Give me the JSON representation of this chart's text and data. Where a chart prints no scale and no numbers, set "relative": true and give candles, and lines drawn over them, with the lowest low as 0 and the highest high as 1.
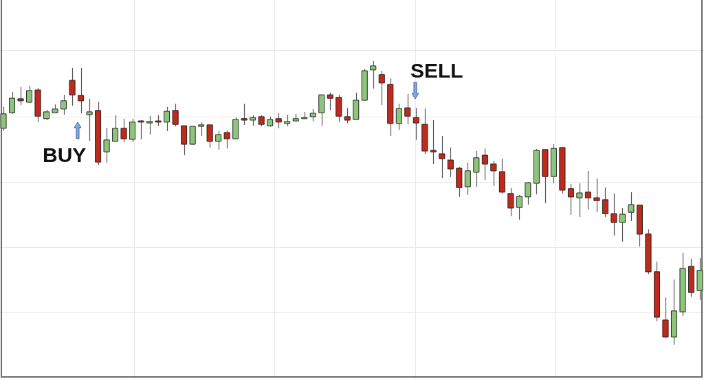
{
  "chart_data": {
    "type": "candlestick",
    "relative": true,
    "grid": true,
    "categories": [
      null,
      null,
      null,
      null,
      null,
      null,
      null,
      null,
      null,
      null,
      null,
      null,
      null,
      null,
      null,
      null,
      null,
      null,
      null,
      null,
      null,
      null,
      null,
      null,
      null,
      null,
      null,
      null,
      null,
      null,
      null,
      null,
      null,
      null,
      null,
      null,
      null,
      null,
      null,
      null,
      null,
      null,
      null,
      null,
      null,
      null,
      null,
      null,
      null,
      null,
      null,
      null,
      null,
      null,
      null,
      null,
      null,
      null,
      null,
      null,
      null,
      null,
      null,
      null,
      null,
      null,
      null,
      null,
      null,
      null,
      null,
      null,
      null,
      null,
      null,
      null,
      null,
      null,
      null,
      null,
      null,
      null
    ],
    "ohlc": [
      [
        0.763,
        0.84,
        0.755,
        0.814
      ],
      [
        0.818,
        0.891,
        0.814,
        0.869
      ],
      [
        0.867,
        0.908,
        0.845,
        0.86
      ],
      [
        0.855,
        0.913,
        0.852,
        0.896
      ],
      [
        0.898,
        0.906,
        0.785,
        0.806
      ],
      [
        0.797,
        0.828,
        0.792,
        0.821
      ],
      [
        0.818,
        0.847,
        0.818,
        0.831
      ],
      [
        0.831,
        0.881,
        0.811,
        0.86
      ],
      [
        0.932,
        0.976,
        0.843,
        0.881
      ],
      [
        0.879,
        0.976,
        0.816,
        0.86
      ],
      [
        0.811,
        0.867,
        0.719,
        0.821
      ],
      [
        0.826,
        0.857,
        0.634,
        0.644
      ],
      [
        0.68,
        0.765,
        0.642,
        0.722
      ],
      [
        0.717,
        0.809,
        0.717,
        0.763
      ],
      [
        0.763,
        0.797,
        0.714,
        0.726
      ],
      [
        0.724,
        0.797,
        0.714,
        0.785
      ],
      [
        0.789,
        0.792,
        0.724,
        0.785
      ],
      [
        0.782,
        0.806,
        0.741,
        0.787
      ],
      [
        0.789,
        0.809,
        0.772,
        0.785
      ],
      [
        0.785,
        0.838,
        0.753,
        0.823
      ],
      [
        0.826,
        0.85,
        0.77,
        0.777
      ],
      [
        0.772,
        0.772,
        0.668,
        0.707
      ],
      [
        0.707,
        0.77,
        0.705,
        0.77
      ],
      [
        0.77,
        0.785,
        0.736,
        0.775
      ],
      [
        0.775,
        0.775,
        0.695,
        0.717
      ],
      [
        0.717,
        0.753,
        0.688,
        0.741
      ],
      [
        0.748,
        0.755,
        0.692,
        0.726
      ],
      [
        0.726,
        0.801,
        0.726,
        0.794
      ],
      [
        0.797,
        0.85,
        0.775,
        0.792
      ],
      [
        0.792,
        0.809,
        0.772,
        0.801
      ],
      [
        0.804,
        0.809,
        0.77,
        0.777
      ],
      [
        0.772,
        0.804,
        0.768,
        0.794
      ],
      [
        0.797,
        0.816,
        0.763,
        0.785
      ],
      [
        0.78,
        0.811,
        0.77,
        0.787
      ],
      [
        0.789,
        0.814,
        0.787,
        0.797
      ],
      [
        0.797,
        0.821,
        0.797,
        0.801
      ],
      [
        0.804,
        0.831,
        0.789,
        0.816
      ],
      [
        0.818,
        0.881,
        0.772,
        0.881
      ],
      [
        0.881,
        0.889,
        0.828,
        0.869
      ],
      [
        0.872,
        0.881,
        0.785,
        0.806
      ],
      [
        0.804,
        0.835,
        0.782,
        0.792
      ],
      [
        0.794,
        0.889,
        0.794,
        0.862
      ],
      [
        0.862,
        0.973,
        0.862,
        0.966
      ],
      [
        0.969,
        1,
        0.903,
        0.983
      ],
      [
        0.952,
        0.966,
        0.845,
        0.923
      ],
      [
        0.918,
        0.939,
        0.736,
        0.78
      ],
      [
        0.78,
        0.85,
        0.758,
        0.833
      ],
      [
        0.835,
        0.884,
        0.777,
        0.806
      ],
      [
        0.801,
        0.835,
        0.722,
        0.782
      ],
      [
        0.777,
        0.833,
        0.673,
        0.683
      ],
      [
        0.685,
        0.792,
        0.637,
        0.68
      ],
      [
        0.673,
        0.736,
        0.588,
        0.656
      ],
      [
        0.651,
        0.695,
        0.591,
        0.62
      ],
      [
        0.622,
        0.627,
        0.521,
        0.554
      ],
      [
        0.557,
        0.642,
        0.528,
        0.613
      ],
      [
        0.608,
        0.683,
        0.557,
        0.659
      ],
      [
        0.668,
        0.692,
        0.581,
        0.637
      ],
      [
        0.637,
        0.649,
        0.559,
        0.613
      ],
      [
        0.61,
        0.656,
        0.533,
        0.538
      ],
      [
        0.533,
        0.552,
        0.453,
        0.482
      ],
      [
        0.484,
        0.528,
        0.441,
        0.523
      ],
      [
        0.521,
        0.574,
        0.494,
        0.571
      ],
      [
        0.569,
        0.69,
        0.53,
        0.685
      ],
      [
        0.688,
        0.688,
        0.499,
        0.593
      ],
      [
        0.593,
        0.707,
        0.569,
        0.692
      ],
      [
        0.695,
        0.695,
        0.533,
        0.545
      ],
      [
        0.55,
        0.567,
        0.458,
        0.521
      ],
      [
        0.518,
        0.569,
        0.45,
        0.535
      ],
      [
        0.538,
        0.613,
        0.477,
        0.518
      ],
      [
        0.518,
        0.586,
        0.467,
        0.508
      ],
      [
        0.511,
        0.554,
        0.45,
        0.462
      ],
      [
        0.462,
        0.533,
        0.385,
        0.431
      ],
      [
        0.431,
        0.482,
        0.363,
        0.46
      ],
      [
        0.467,
        0.538,
        0.436,
        0.494
      ],
      [
        0.492,
        0.494,
        0.346,
        0.39
      ],
      [
        0.39,
        0.407,
        0.249,
        0.257
      ],
      [
        0.257,
        0.293,
        0.082,
        0.097
      ],
      [
        0.087,
        0.167,
        0.024,
        0.027
      ],
      [
        0.027,
        0.23,
        0,
        0.119
      ],
      [
        0.116,
        0.324,
        0.102,
        0.269
      ],
      [
        0.276,
        0.303,
        0.169,
        0.184
      ],
      [
        0.191,
        0.305,
        0.157,
        0.262
      ]
    ],
    "colors": [
      "#8ec57c",
      "#8ec57c",
      "#c1291d",
      "#8ec57c",
      "#c1291d",
      "#8ec57c",
      "#8ec57c",
      "#8ec57c",
      "#c1291d",
      "#c1291d",
      "#8ec57c",
      "#c1291d",
      "#8ec57c",
      "#8ec57c",
      "#c1291d",
      "#8ec57c",
      "#c1291d",
      "#8ec57c",
      "#c1291d",
      "#8ec57c",
      "#c1291d",
      "#c1291d",
      "#8ec57c",
      "#8ec57c",
      "#c1291d",
      "#8ec57c",
      "#c1291d",
      "#8ec57c",
      "#c1291d",
      "#8ec57c",
      "#c1291d",
      "#8ec57c",
      "#c1291d",
      "#8ec57c",
      "#8ec57c",
      "#8ec57c",
      "#8ec57c",
      "#8ec57c",
      "#c1291d",
      "#c1291d",
      "#c1291d",
      "#8ec57c",
      "#8ec57c",
      "#8ec57c",
      "#c1291d",
      "#c1291d",
      "#8ec57c",
      "#c1291d",
      "#c1291d",
      "#c1291d",
      "#c1291d",
      "#c1291d",
      "#c1291d",
      "#c1291d",
      "#8ec57c",
      "#8ec57c",
      "#c1291d",
      "#c1291d",
      "#c1291d",
      "#c1291d",
      "#8ec57c",
      "#8ec57c",
      "#8ec57c",
      "#c1291d",
      "#8ec57c",
      "#c1291d",
      "#c1291d",
      "#8ec57c",
      "#c1291d",
      "#c1291d",
      "#c1291d",
      "#c1291d",
      "#8ec57c",
      "#8ec57c",
      "#c1291d",
      "#c1291d",
      "#c1291d",
      "#c1291d",
      "#8ec57c",
      "#8ec57c",
      "#c1291d",
      "#8ec57c"
    ],
    "annotations": [
      "BUY",
      "SELL"
    ]
  }
}
